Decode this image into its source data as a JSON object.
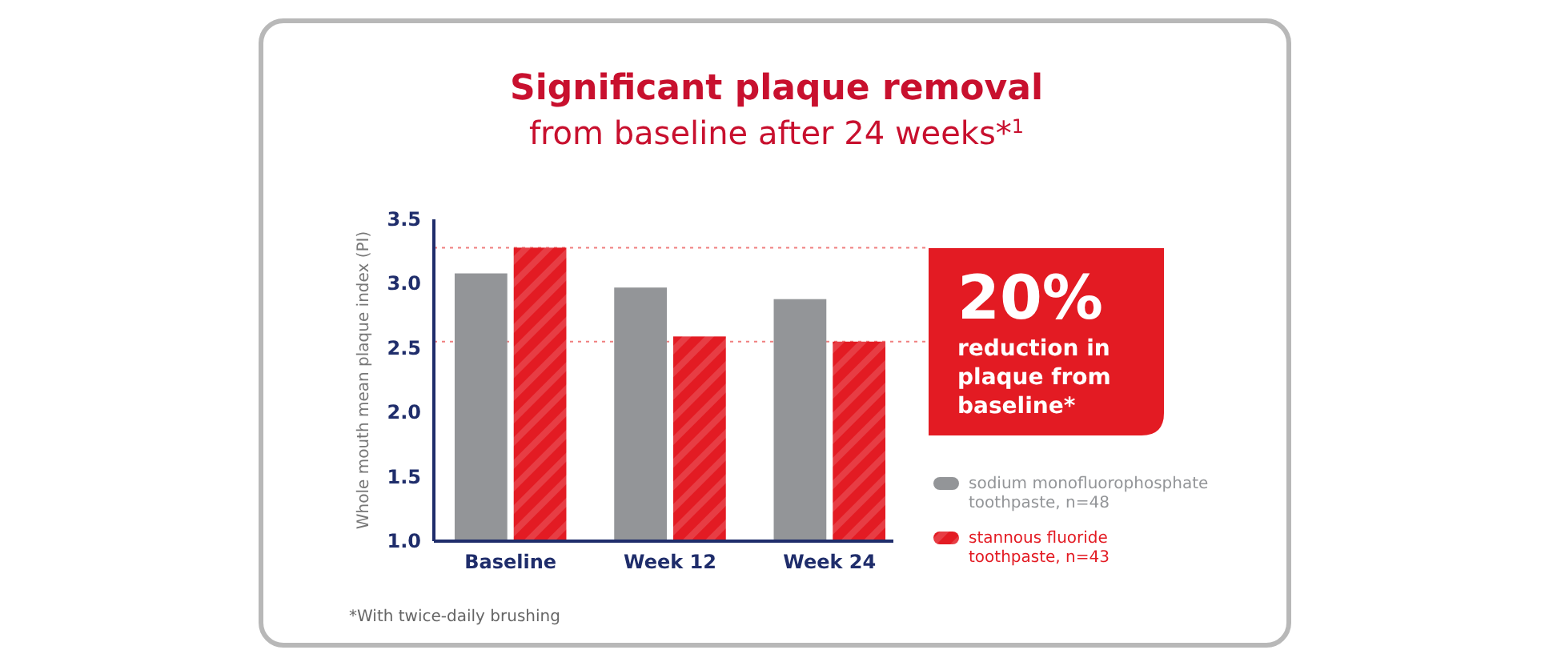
{
  "chart_data": {
    "type": "bar",
    "title": "Significant plaque removal",
    "subtitle": "from baseline after 24 weeks*$^{1}$",
    "ylabel": "Whole mouth mean plaque index (PI)",
    "categories": [
      "Baseline",
      "Week 12",
      "Week 24"
    ],
    "series": [
      {
        "name": "sodium monofluorophosphate toothpaste, n=48",
        "color": "#939598",
        "values": [
          3.08,
          2.97,
          2.88
        ]
      },
      {
        "name": "stannous fluoride toothpaste, n=43",
        "color": "#e31b23",
        "values": [
          3.28,
          2.59,
          2.55
        ]
      }
    ],
    "ylim": [
      1.0,
      3.5
    ],
    "yticks": [
      {
        "value": 1.0,
        "label": "1.0"
      },
      1.5,
      {
        "value": 2.0,
        "label": "2.0"
      },
      2.5,
      {
        "value": 3.0,
        "label": "3.0"
      },
      3.5
    ],
    "ref_lines": [
      {
        "axis": "y",
        "value": 3.28,
        "color": "#f08080",
        "line_style": "dotted"
      },
      {
        "axis": "y",
        "value": 2.55,
        "color": "#f08080",
        "line_style": "dotted"
      }
    ],
    "annotations": [
      "20% reduction in plaque from baseline*",
      "*With twice-daily brushing"
    ],
    "legend": "bottom right",
    "grid": false
  }
}
